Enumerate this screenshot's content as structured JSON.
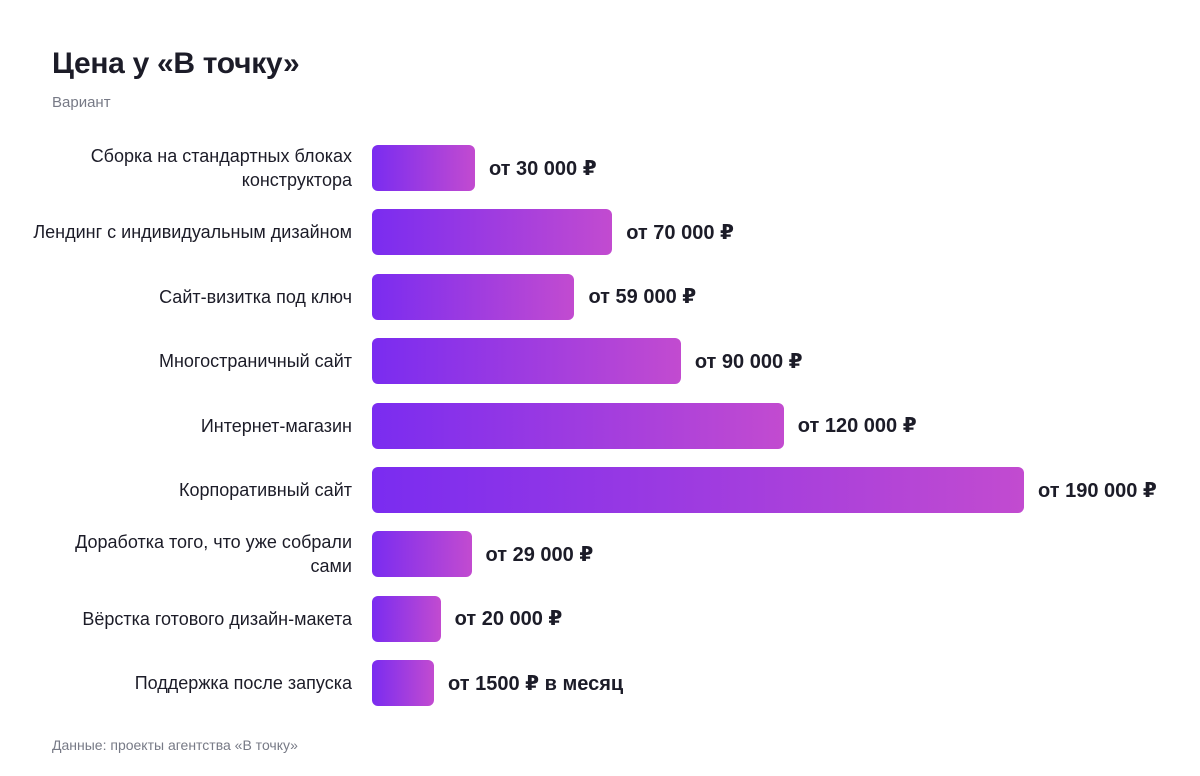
{
  "title": "Цена у «В точку»",
  "subtitle": "Вариант",
  "footer": "Данные: проекты агентства «В точку»",
  "chart_data": {
    "type": "bar",
    "orientation": "horizontal",
    "title": "Цена у «В точку»",
    "ylabel": "Вариант",
    "categories": [
      "Сборка на стандартных блоках конструктора",
      "Лендинг с индивидуальным дизайном",
      "Сайт-визитка под ключ",
      "Многостраничный сайт",
      "Интернет-магазин",
      "Корпоративный сайт",
      "Доработка того, что уже собрали сами",
      "Вёрстка готового дизайн-макета",
      "Поддержка после запуска"
    ],
    "values": [
      30000,
      70000,
      59000,
      90000,
      120000,
      190000,
      29000,
      20000,
      18000
    ],
    "value_labels": [
      "от 30 000 ₽",
      "от 70 000 ₽",
      "от 59 000 ₽",
      "от 90 000 ₽",
      "от 120 000 ₽",
      "от 190 000 ₽",
      "от 29 000 ₽",
      "от 20 000 ₽",
      "от 1500 ₽ в месяц"
    ],
    "xlim": [
      0,
      190000
    ],
    "grid": false,
    "legend": "none",
    "colors": {
      "bar_gradient_start": "#7a2cf0",
      "bar_gradient_end": "#c24bd0"
    }
  }
}
